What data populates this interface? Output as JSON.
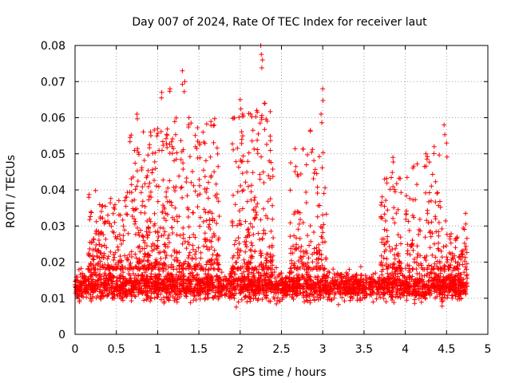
{
  "chart_data": {
    "type": "scatter",
    "title": "Day 007 of 2024, Rate Of TEC Index for receiver laut",
    "xlabel": "GPS time / hours",
    "ylabel": "ROTI / TECUs",
    "xlim": [
      0,
      5
    ],
    "ylim": [
      0,
      0.08
    ],
    "x_ticks": [
      0,
      0.5,
      1,
      1.5,
      2,
      2.5,
      3,
      3.5,
      4,
      4.5,
      5
    ],
    "x_tick_labels": [
      "0",
      "0.5",
      "1",
      "1.5",
      "2",
      "2.5",
      "3",
      "3.5",
      "4",
      "4.5",
      "5"
    ],
    "y_ticks": [
      0,
      0.01,
      0.02,
      0.03,
      0.04,
      0.05,
      0.06,
      0.07,
      0.08
    ],
    "y_tick_labels": [
      "0",
      "0.01",
      "0.02",
      "0.03",
      "0.04",
      "0.05",
      "0.06",
      "0.07",
      "0.08"
    ],
    "grid": true,
    "marker": "+",
    "marker_color": "#ff0000",
    "data_x_range": [
      0,
      4.75
    ],
    "base_band": [
      0.005,
      0.025
    ],
    "series": [
      {
        "name": "ROTI",
        "notable_points": [
          {
            "x": 0.75,
            "y": 0.061
          },
          {
            "x": 1.0,
            "y": 0.057
          },
          {
            "x": 1.05,
            "y": 0.067
          },
          {
            "x": 1.15,
            "y": 0.068
          },
          {
            "x": 1.3,
            "y": 0.073
          },
          {
            "x": 1.33,
            "y": 0.07
          },
          {
            "x": 1.38,
            "y": 0.06
          },
          {
            "x": 1.55,
            "y": 0.056
          },
          {
            "x": 2.0,
            "y": 0.065
          },
          {
            "x": 2.03,
            "y": 0.061
          },
          {
            "x": 2.25,
            "y": 0.08
          },
          {
            "x": 2.27,
            "y": 0.076
          },
          {
            "x": 2.3,
            "y": 0.064
          },
          {
            "x": 2.2,
            "y": 0.062
          },
          {
            "x": 2.85,
            "y": 0.0565
          },
          {
            "x": 2.98,
            "y": 0.061
          },
          {
            "x": 3.0,
            "y": 0.068
          },
          {
            "x": 3.85,
            "y": 0.049
          },
          {
            "x": 4.25,
            "y": 0.05
          },
          {
            "x": 4.35,
            "y": 0.052
          },
          {
            "x": 4.47,
            "y": 0.058
          },
          {
            "x": 4.5,
            "y": 0.053
          },
          {
            "x": 4.73,
            "y": 0.0335
          }
        ]
      }
    ]
  }
}
